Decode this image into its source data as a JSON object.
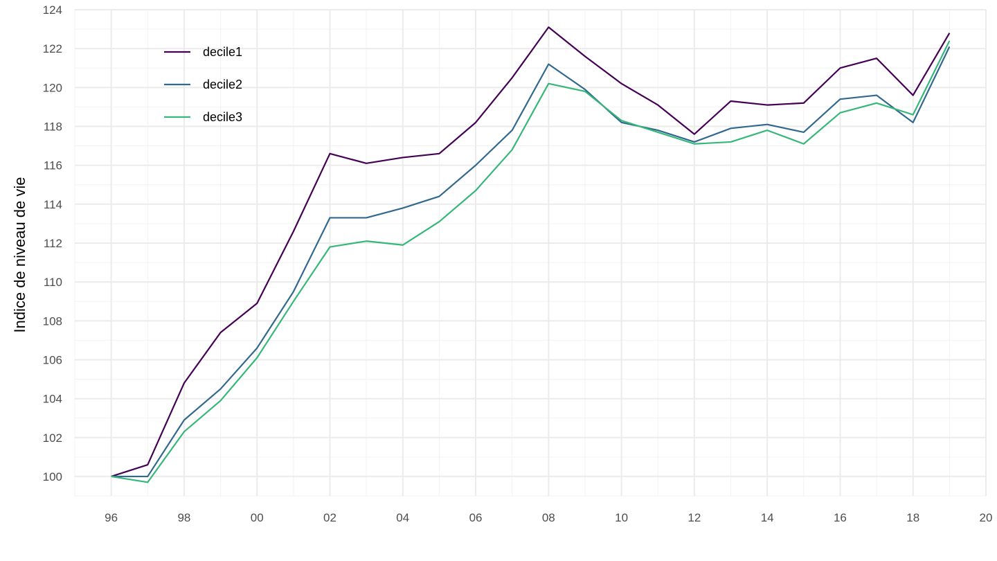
{
  "chart_data": {
    "type": "line",
    "title": "",
    "xlabel": "",
    "ylabel": "Indice de niveau de vie",
    "x": [
      1996,
      1997,
      1998,
      1999,
      2000,
      2001,
      2002,
      2003,
      2004,
      2005,
      2006,
      2007,
      2008,
      2009,
      2010,
      2011,
      2012,
      2013,
      2014,
      2015,
      2016,
      2017,
      2018,
      2019
    ],
    "xlim": [
      1995,
      2020
    ],
    "ylim": [
      99,
      124
    ],
    "x_ticks": [
      1996,
      1998,
      2000,
      2002,
      2004,
      2006,
      2008,
      2010,
      2012,
      2014,
      2016,
      2018,
      2020
    ],
    "x_tick_labels": [
      "96",
      "98",
      "00",
      "02",
      "04",
      "06",
      "08",
      "10",
      "12",
      "14",
      "16",
      "18",
      "20"
    ],
    "y_ticks": [
      100,
      102,
      104,
      106,
      108,
      110,
      112,
      114,
      116,
      118,
      120,
      122,
      124
    ],
    "y_tick_labels": [
      "100",
      "102",
      "104",
      "106",
      "108",
      "110",
      "112",
      "114",
      "116",
      "118",
      "120",
      "122",
      "124"
    ],
    "grid": true,
    "legend_position": "top-left",
    "series": [
      {
        "name": "decile1",
        "color": "#440154",
        "values": [
          100.0,
          100.6,
          104.8,
          107.4,
          108.9,
          112.6,
          116.6,
          116.1,
          116.4,
          116.6,
          118.2,
          120.5,
          123.1,
          121.6,
          120.2,
          119.1,
          117.6,
          119.3,
          119.1,
          119.2,
          121.0,
          121.5,
          119.6,
          122.8
        ]
      },
      {
        "name": "decile2",
        "color": "#31688e",
        "values": [
          100.0,
          100.0,
          102.9,
          104.5,
          106.6,
          109.5,
          113.3,
          113.3,
          113.8,
          114.4,
          116.0,
          117.8,
          121.2,
          119.9,
          118.2,
          117.8,
          117.2,
          117.9,
          118.1,
          117.7,
          119.4,
          119.6,
          118.2,
          122.1
        ]
      },
      {
        "name": "decile3",
        "color": "#35b779",
        "values": [
          100.0,
          99.7,
          102.3,
          103.9,
          106.1,
          109.0,
          111.8,
          112.1,
          111.9,
          113.1,
          114.7,
          116.8,
          120.2,
          119.8,
          118.3,
          117.7,
          117.1,
          117.2,
          117.8,
          117.1,
          118.7,
          119.2,
          118.6,
          122.4
        ]
      }
    ]
  }
}
